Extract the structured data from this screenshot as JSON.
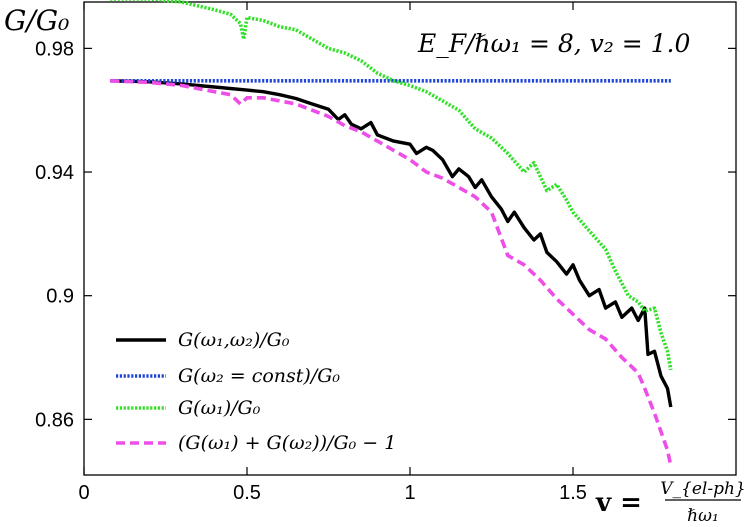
{
  "chart_data": {
    "type": "line",
    "ylabel": "G/G₀",
    "xlabel_prefix": "v =",
    "xlabel_frac_num": "V_{el-ph}",
    "xlabel_frac_den": "ℏω₁",
    "annotation": "E_F/ℏω₁ = 8, v₂ = 1.0",
    "xlim": [
      0,
      2.0
    ],
    "ylim": [
      0.842,
      0.995
    ],
    "x_ticks": [
      {
        "value": 0,
        "label": "0"
      },
      {
        "value": 0.5,
        "label": "0.5"
      },
      {
        "value": 1,
        "label": "1"
      },
      {
        "value": 1.5,
        "label": "1.5"
      }
    ],
    "y_ticks": [
      {
        "value": 0.86,
        "label": "0.86"
      },
      {
        "value": 0.9,
        "label": "0.9"
      },
      {
        "value": 0.94,
        "label": "0.94"
      },
      {
        "value": 0.98,
        "label": "0.98"
      }
    ],
    "legend_position": "bottom-left",
    "series": [
      {
        "name": "G(ω₁,ω₂)/G₀",
        "color": "#000000",
        "dash": "solid",
        "points": [
          [
            0.08,
            0.9695
          ],
          [
            0.2,
            0.9692
          ],
          [
            0.3,
            0.9685
          ],
          [
            0.4,
            0.9675
          ],
          [
            0.5,
            0.9665
          ],
          [
            0.55,
            0.966
          ],
          [
            0.6,
            0.965
          ],
          [
            0.65,
            0.9638
          ],
          [
            0.7,
            0.962
          ],
          [
            0.75,
            0.9603
          ],
          [
            0.78,
            0.957
          ],
          [
            0.8,
            0.9585
          ],
          [
            0.82,
            0.9555
          ],
          [
            0.85,
            0.954
          ],
          [
            0.88,
            0.956
          ],
          [
            0.9,
            0.952
          ],
          [
            0.95,
            0.95
          ],
          [
            1.0,
            0.949
          ],
          [
            1.02,
            0.946
          ],
          [
            1.05,
            0.948
          ],
          [
            1.07,
            0.947
          ],
          [
            1.1,
            0.944
          ],
          [
            1.13,
            0.9385
          ],
          [
            1.15,
            0.941
          ],
          [
            1.18,
            0.9385
          ],
          [
            1.2,
            0.935
          ],
          [
            1.22,
            0.9375
          ],
          [
            1.25,
            0.932
          ],
          [
            1.28,
            0.928
          ],
          [
            1.3,
            0.924
          ],
          [
            1.32,
            0.927
          ],
          [
            1.35,
            0.922
          ],
          [
            1.38,
            0.918
          ],
          [
            1.4,
            0.92
          ],
          [
            1.42,
            0.914
          ],
          [
            1.45,
            0.911
          ],
          [
            1.48,
            0.907
          ],
          [
            1.5,
            0.91
          ],
          [
            1.52,
            0.905
          ],
          [
            1.55,
            0.9
          ],
          [
            1.58,
            0.902
          ],
          [
            1.6,
            0.896
          ],
          [
            1.63,
            0.898
          ],
          [
            1.65,
            0.893
          ],
          [
            1.68,
            0.896
          ],
          [
            1.7,
            0.892
          ],
          [
            1.72,
            0.896
          ],
          [
            1.73,
            0.881
          ],
          [
            1.75,
            0.882
          ],
          [
            1.77,
            0.874
          ],
          [
            1.79,
            0.87
          ],
          [
            1.8,
            0.864
          ]
        ]
      },
      {
        "name": "G(ω₂ = const)/G₀",
        "color": "#1f45d8",
        "dash": "dotted",
        "points": [
          [
            0.08,
            0.9695
          ],
          [
            1.8,
            0.9695
          ]
        ]
      },
      {
        "name": "G(ω₁)/G₀",
        "color": "#33e02a",
        "dash": "dotted",
        "points": [
          [
            0.08,
            0.996
          ],
          [
            0.2,
            0.996
          ],
          [
            0.3,
            0.995
          ],
          [
            0.4,
            0.9925
          ],
          [
            0.45,
            0.991
          ],
          [
            0.48,
            0.988
          ],
          [
            0.49,
            0.983
          ],
          [
            0.5,
            0.99
          ],
          [
            0.55,
            0.989
          ],
          [
            0.6,
            0.987
          ],
          [
            0.65,
            0.986
          ],
          [
            0.7,
            0.983
          ],
          [
            0.75,
            0.98
          ],
          [
            0.8,
            0.9785
          ],
          [
            0.85,
            0.976
          ],
          [
            0.9,
            0.972
          ],
          [
            0.95,
            0.9695
          ],
          [
            1.0,
            0.968
          ],
          [
            1.05,
            0.966
          ],
          [
            1.1,
            0.963
          ],
          [
            1.15,
            0.96
          ],
          [
            1.2,
            0.954
          ],
          [
            1.25,
            0.951
          ],
          [
            1.3,
            0.946
          ],
          [
            1.35,
            0.94
          ],
          [
            1.38,
            0.943
          ],
          [
            1.42,
            0.934
          ],
          [
            1.45,
            0.936
          ],
          [
            1.48,
            0.931
          ],
          [
            1.5,
            0.927
          ],
          [
            1.55,
            0.921
          ],
          [
            1.6,
            0.915
          ],
          [
            1.63,
            0.908
          ],
          [
            1.67,
            0.9
          ],
          [
            1.7,
            0.898
          ],
          [
            1.72,
            0.895
          ],
          [
            1.75,
            0.896
          ],
          [
            1.77,
            0.888
          ],
          [
            1.79,
            0.882
          ],
          [
            1.8,
            0.876
          ]
        ]
      },
      {
        "name": "(G(ω₁) + G(ω₂))/G₀ − 1",
        "color": "#ee4ee8",
        "dash": "dashed",
        "points": [
          [
            0.08,
            0.9695
          ],
          [
            0.2,
            0.969
          ],
          [
            0.3,
            0.968
          ],
          [
            0.4,
            0.966
          ],
          [
            0.45,
            0.965
          ],
          [
            0.48,
            0.962
          ],
          [
            0.5,
            0.964
          ],
          [
            0.55,
            0.964
          ],
          [
            0.6,
            0.963
          ],
          [
            0.65,
            0.962
          ],
          [
            0.7,
            0.96
          ],
          [
            0.75,
            0.958
          ],
          [
            0.8,
            0.955
          ],
          [
            0.85,
            0.953
          ],
          [
            0.9,
            0.95
          ],
          [
            0.95,
            0.947
          ],
          [
            1.0,
            0.944
          ],
          [
            1.05,
            0.94
          ],
          [
            1.1,
            0.938
          ],
          [
            1.15,
            0.935
          ],
          [
            1.2,
            0.932
          ],
          [
            1.25,
            0.927
          ],
          [
            1.3,
            0.913
          ],
          [
            1.35,
            0.91
          ],
          [
            1.4,
            0.905
          ],
          [
            1.45,
            0.899
          ],
          [
            1.5,
            0.894
          ],
          [
            1.55,
            0.889
          ],
          [
            1.6,
            0.886
          ],
          [
            1.65,
            0.88
          ],
          [
            1.7,
            0.875
          ],
          [
            1.72,
            0.87
          ],
          [
            1.75,
            0.862
          ],
          [
            1.77,
            0.856
          ],
          [
            1.79,
            0.85
          ],
          [
            1.8,
            0.845
          ]
        ]
      }
    ]
  }
}
